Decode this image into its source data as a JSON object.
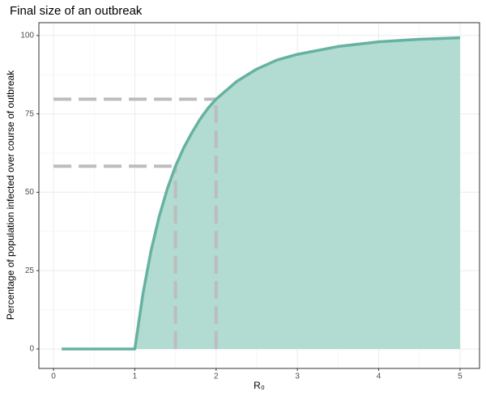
{
  "chart_data": {
    "type": "area",
    "title": "Final size of an outbreak",
    "x_label": "R₀",
    "y_label": "Percentage of population infected over course of outbreak",
    "x": [
      0.1,
      0.5,
      0.9,
      1.0,
      1.1,
      1.2,
      1.3,
      1.4,
      1.5,
      1.6,
      1.7,
      1.8,
      1.9,
      2.0,
      2.25,
      2.5,
      2.75,
      3.0,
      3.5,
      4.0,
      4.5,
      5.0
    ],
    "series": [
      {
        "color": "#66b2a0",
        "fill": "#b2dbd1",
        "values": [
          0,
          0,
          0,
          0,
          17.6,
          31.4,
          42.3,
          51.1,
          58.3,
          64.1,
          68.9,
          73.2,
          76.8,
          79.7,
          85.3,
          89.3,
          92.2,
          94.0,
          96.5,
          98.0,
          98.8,
          99.3
        ]
      }
    ],
    "reference_points": [
      {
        "x": 1.5,
        "y": 58.3
      },
      {
        "x": 2.0,
        "y": 79.7
      }
    ],
    "reference_color": "#bdbdbd",
    "xlim": [
      -0.18,
      5.24
    ],
    "ylim": [
      -6.2,
      104.1
    ],
    "xticks": [
      0,
      1,
      2,
      3,
      4,
      5
    ],
    "yticks": [
      0,
      25,
      50,
      75,
      100
    ],
    "grid": true
  }
}
